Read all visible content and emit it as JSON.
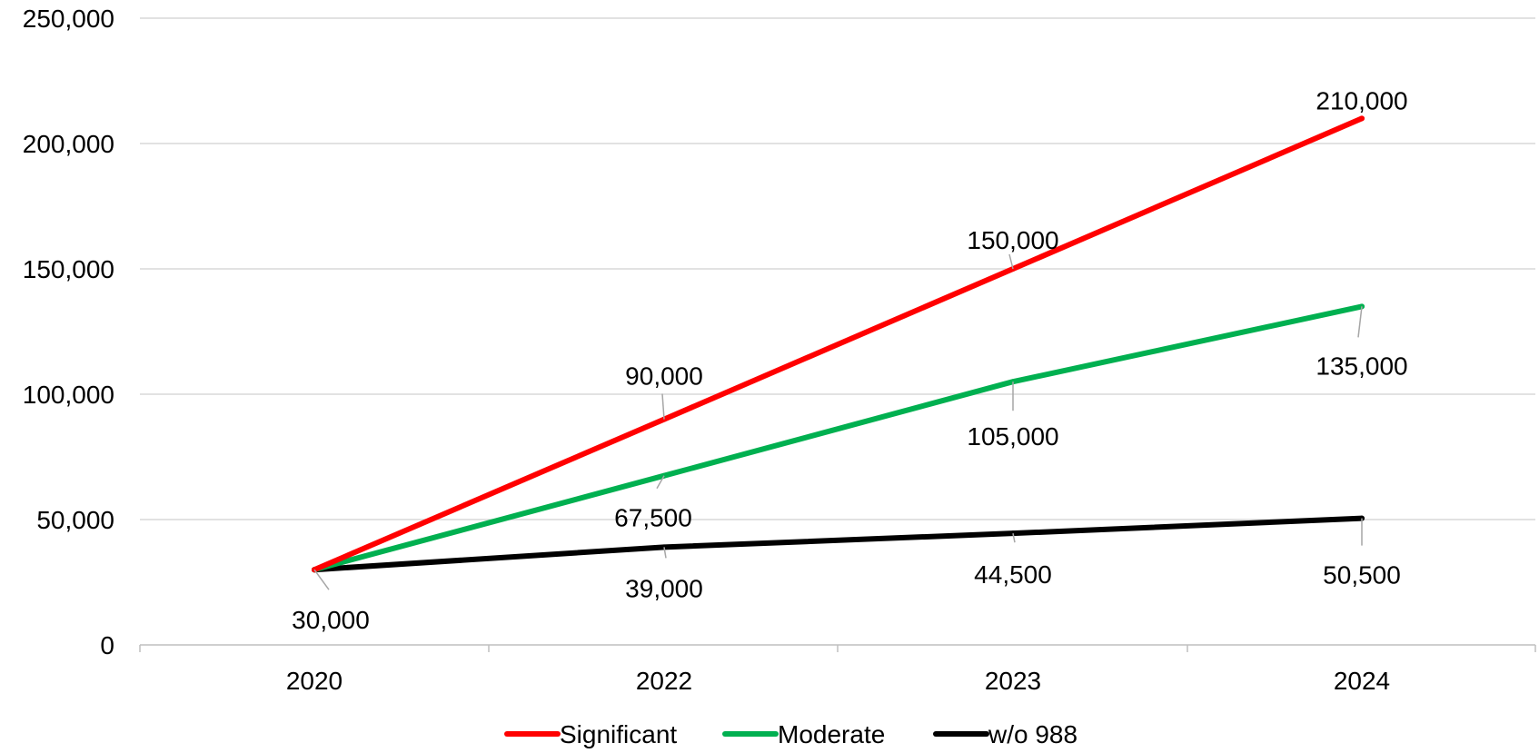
{
  "chart_data": {
    "type": "line",
    "categories": [
      "2020",
      "2022",
      "2023",
      "2024"
    ],
    "series": [
      {
        "name": "Significant",
        "color": "#ff0000",
        "values": [
          30000,
          90000,
          150000,
          210000
        ],
        "labels": [
          "",
          "90,000",
          "150,000",
          "210,000"
        ]
      },
      {
        "name": "Moderate",
        "color": "#00b050",
        "values": [
          30000,
          67500,
          105000,
          135000
        ],
        "labels": [
          "",
          "67,500",
          "105,000",
          "135,000"
        ]
      },
      {
        "name": "w/o 988",
        "color": "#000000",
        "values": [
          30000,
          39000,
          44500,
          50500
        ],
        "labels": [
          "30,000",
          "39,000",
          "44,500",
          "50,500"
        ]
      }
    ],
    "ylim": [
      0,
      250000
    ],
    "yticks": [
      0,
      50000,
      100000,
      150000,
      200000,
      250000
    ],
    "ytick_labels": [
      "0",
      "50,000",
      "100,000",
      "150,000",
      "200,000",
      "250,000"
    ],
    "grid": true,
    "legend_position": "bottom"
  }
}
